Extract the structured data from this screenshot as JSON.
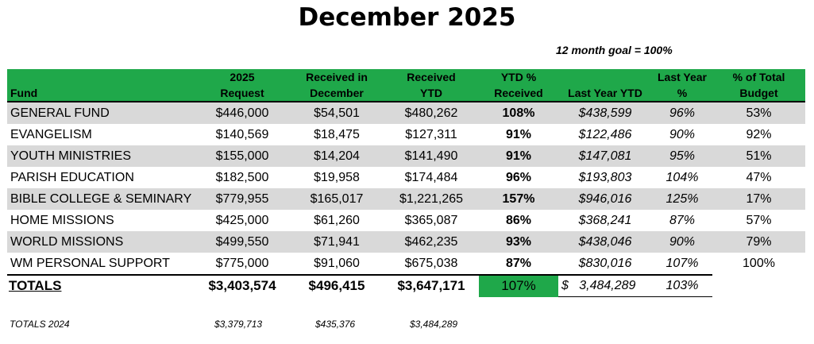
{
  "title": "December 2025",
  "goal": "12 month goal =  100%",
  "headers": {
    "fund": "Fund",
    "request_1": "2025",
    "request_2": "Request",
    "received_month_1": "Received in",
    "received_month_2": "December",
    "received_ytd_1": "Received",
    "received_ytd_2": "YTD",
    "ytd_pct_1": "YTD %",
    "ytd_pct_2": "Received",
    "last_year_ytd": "Last Year YTD",
    "last_year_pct_1": "Last Year",
    "last_year_pct_2": "%",
    "pct_budget_1": "% of Total",
    "pct_budget_2": "Budget"
  },
  "rows": [
    {
      "fund": "GENERAL FUND",
      "request": "$446,000",
      "received_month": "$54,501",
      "received_ytd": "$480,262",
      "ytd_pct": "108%",
      "last_year_ytd": "$438,599",
      "last_year_pct": "96%",
      "pct_budget": "53%"
    },
    {
      "fund": "EVANGELISM",
      "request": "$140,569",
      "received_month": "$18,475",
      "received_ytd": "$127,311",
      "ytd_pct": "91%",
      "last_year_ytd": "$122,486",
      "last_year_pct": "90%",
      "pct_budget": "92%"
    },
    {
      "fund": "YOUTH MINISTRIES",
      "request": "$155,000",
      "received_month": "$14,204",
      "received_ytd": "$141,490",
      "ytd_pct": "91%",
      "last_year_ytd": "$147,081",
      "last_year_pct": "95%",
      "pct_budget": "51%"
    },
    {
      "fund": "PARISH EDUCATION",
      "request": "$182,500",
      "received_month": "$19,958",
      "received_ytd": "$174,484",
      "ytd_pct": "96%",
      "last_year_ytd": "$193,803",
      "last_year_pct": "104%",
      "pct_budget": "47%"
    },
    {
      "fund": "BIBLE COLLEGE & SEMINARY",
      "request": "$779,955",
      "received_month": "$165,017",
      "received_ytd": "$1,221,265",
      "ytd_pct": "157%",
      "last_year_ytd": "$946,016",
      "last_year_pct": "125%",
      "pct_budget": "17%"
    },
    {
      "fund": "HOME MISSIONS",
      "request": "$425,000",
      "received_month": "$61,260",
      "received_ytd": "$365,087",
      "ytd_pct": "86%",
      "last_year_ytd": "$368,241",
      "last_year_pct": "87%",
      "pct_budget": "57%"
    },
    {
      "fund": "WORLD MISSIONS",
      "request": "$499,550",
      "received_month": "$71,941",
      "received_ytd": "$462,235",
      "ytd_pct": "93%",
      "last_year_ytd": "$438,046",
      "last_year_pct": "90%",
      "pct_budget": "79%"
    },
    {
      "fund": "WM PERSONAL SUPPORT",
      "request": "$775,000",
      "received_month": "$91,060",
      "received_ytd": "$675,038",
      "ytd_pct": "87%",
      "last_year_ytd": "$830,016",
      "last_year_pct": "107%",
      "pct_budget": "100%"
    }
  ],
  "totals": {
    "label": "TOTALS",
    "request": "$3,403,574",
    "received_month": "$496,415",
    "received_ytd": "$3,647,171",
    "ytd_pct": "107%",
    "last_year_ytd": "$   3,484,289",
    "last_year_pct": "103%"
  },
  "totals_2024": {
    "label": "TOTALS 2024",
    "request": "$3,379,713",
    "received_month": "$435,376",
    "received_ytd": "$3,484,289"
  },
  "colors": {
    "header_green": "#1fa84a",
    "row_shade": "#d9d9d9"
  }
}
